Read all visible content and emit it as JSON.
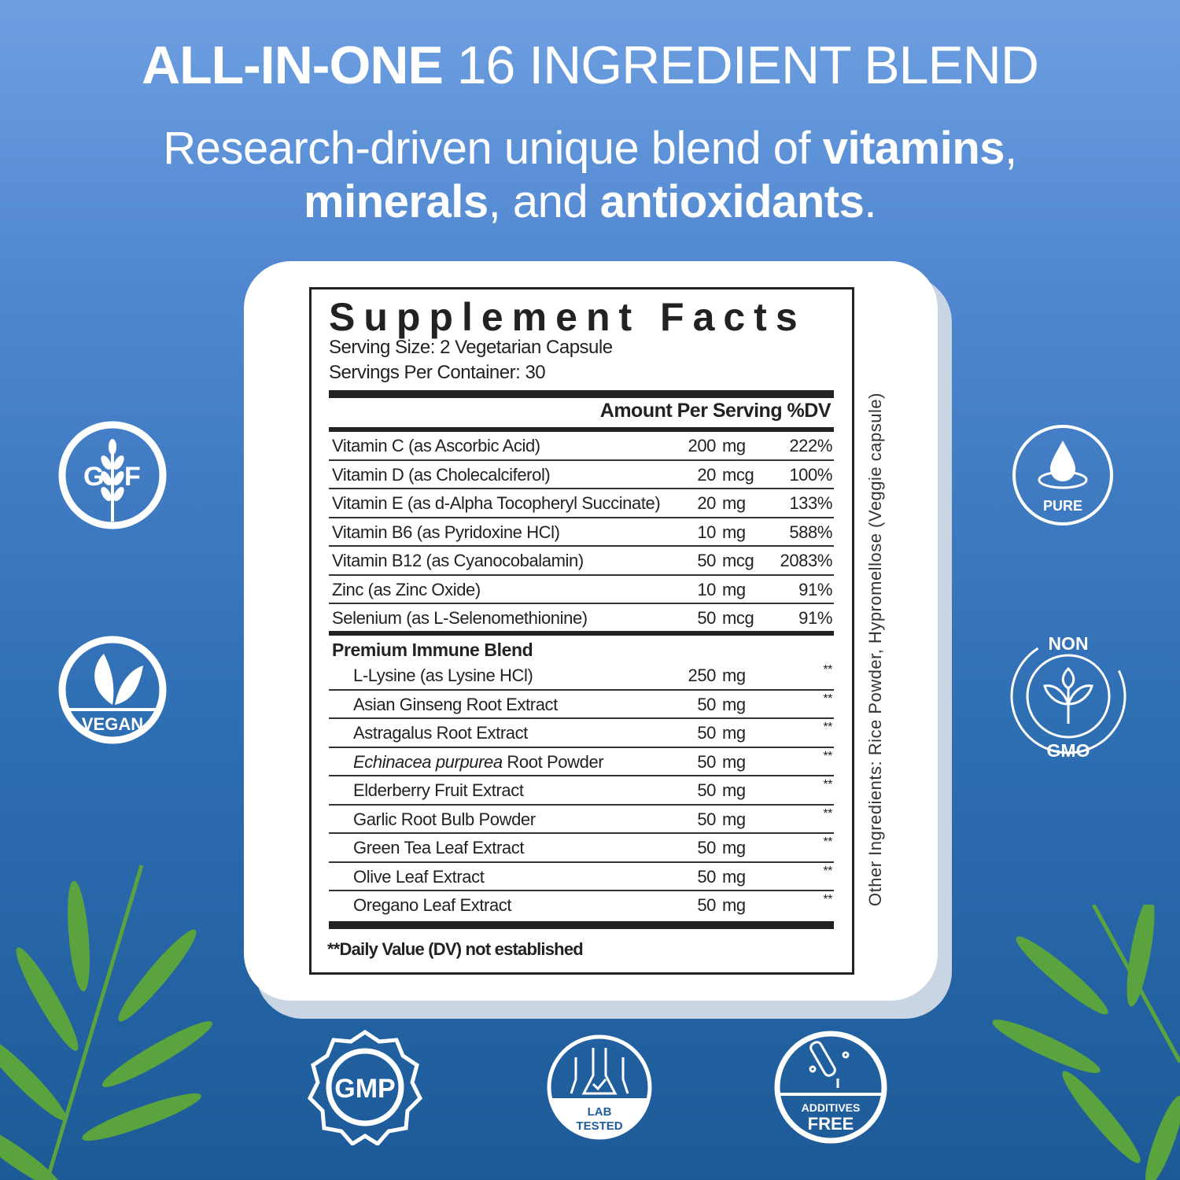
{
  "header": {
    "title_bold": "ALL-IN-ONE",
    "title_rest": "16 INGREDIENT BLEND",
    "subtitle": {
      "p1": "Research-driven unique blend of ",
      "b1": "vitamins",
      "p2": ",",
      "b2": "minerals",
      "p3": ", and ",
      "b3": "antioxidants",
      "p4": "."
    }
  },
  "facts": {
    "title": "Supplement Facts",
    "serving_size": "Serving Size: 2 Vegetarian Capsule",
    "servings_per_container": "Servings Per Container: 30",
    "column_header": "Amount Per Serving %DV",
    "vitamins": [
      {
        "name": "Vitamin C (as Ascorbic Acid)",
        "amount": "200",
        "unit": "mg",
        "dv": "222%"
      },
      {
        "name": "Vitamin D (as Cholecalciferol)",
        "amount": "20",
        "unit": "mcg",
        "dv": "100%"
      },
      {
        "name": "Vitamin E (as d-Alpha Tocopheryl Succinate)",
        "amount": "20",
        "unit": "mg",
        "dv": "133%"
      },
      {
        "name": "Vitamin B6 (as Pyridoxine HCl)",
        "amount": "10",
        "unit": "mg",
        "dv": "588%"
      },
      {
        "name": "Vitamin B12 (as Cyanocobalamin)",
        "amount": "50",
        "unit": "mcg",
        "dv": "2083%"
      },
      {
        "name": "Zinc (as Zinc Oxide)",
        "amount": "10",
        "unit": "mg",
        "dv": "91%"
      },
      {
        "name": "Selenium (as L-Selenomethionine)",
        "amount": "50",
        "unit": "mcg",
        "dv": "91%"
      }
    ],
    "blend_title": "Premium Immune Blend",
    "blend": [
      {
        "name": "L-Lysine (as Lysine HCl)",
        "amount": "250",
        "unit": "mg",
        "dv": "**"
      },
      {
        "name": "Asian Ginseng Root Extract",
        "amount": "50",
        "unit": "mg",
        "dv": "**"
      },
      {
        "name": "Astragalus Root Extract",
        "amount": "50",
        "unit": "mg",
        "dv": "**"
      },
      {
        "name_italic": "Echinacea purpurea",
        "name": " Root Powder",
        "amount": "50",
        "unit": "mg",
        "dv": "**"
      },
      {
        "name": "Elderberry Fruit Extract",
        "amount": "50",
        "unit": "mg",
        "dv": "**"
      },
      {
        "name": "Garlic Root Bulb Powder",
        "amount": "50",
        "unit": "mg",
        "dv": "**"
      },
      {
        "name": "Green Tea Leaf Extract",
        "amount": "50",
        "unit": "mg",
        "dv": "**"
      },
      {
        "name": "Olive Leaf Extract",
        "amount": "50",
        "unit": "mg",
        "dv": "**"
      },
      {
        "name": "Oregano Leaf Extract",
        "amount": "50",
        "unit": "mg",
        "dv": "**"
      }
    ],
    "footnote": "**Daily Value (DV) not established",
    "other_ingredients": "Other Ingredients: Rice Powder, Hypromellose (Veggie capsule)"
  },
  "badges": {
    "gf_g": "G",
    "gf_f": "F",
    "vegan": "VEGAN",
    "pure": "PURE",
    "non": "NON",
    "gmo": "GMO",
    "gmp": "GMP",
    "lab1": "LAB",
    "lab2": "TESTED",
    "add1": "ADDITIVES",
    "add2": "FREE"
  },
  "colors": {
    "bg_top": "#6e9fe1",
    "bg_bottom": "#1c5a97",
    "leaf": "#5aa33e",
    "text": "#222222"
  }
}
